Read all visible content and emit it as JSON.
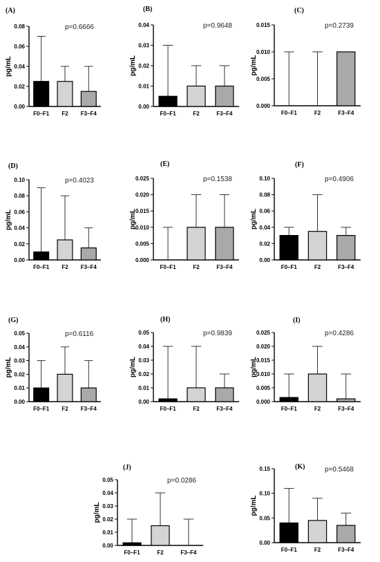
{
  "colors": {
    "F0–F1": "#000000",
    "F2": "#d4d4d4",
    "F3–F4": "#a9a9a9",
    "axis": "#000000",
    "errorbar": "#333333"
  },
  "chart_data": [
    {
      "type": "bar",
      "label": "(A)",
      "pvalue": "p=0.6666",
      "ylabel": "pg/mL",
      "categories": [
        "F0–F1",
        "F2",
        "F3–F4"
      ],
      "values": [
        0.025,
        0.025,
        0.015
      ],
      "error_upper": [
        0.07,
        0.04,
        0.04
      ],
      "ylim": [
        0,
        0.08
      ],
      "yticks": [
        0,
        0.02,
        0.04,
        0.06,
        0.08
      ],
      "ytick_labels": [
        "0.00",
        "0.02",
        "0.04",
        "0.06",
        "0.08"
      ]
    },
    {
      "type": "bar",
      "label": "(B)",
      "pvalue": "p=0.9648",
      "ylabel": "pg/mL",
      "categories": [
        "F0–F1",
        "F2",
        "F3–F4"
      ],
      "values": [
        0.005,
        0.01,
        0.01
      ],
      "error_upper": [
        0.03,
        0.02,
        0.02
      ],
      "ylim": [
        0,
        0.04
      ],
      "yticks": [
        0,
        0.01,
        0.02,
        0.03,
        0.04
      ],
      "ytick_labels": [
        "0.00",
        "0.01",
        "0.02",
        "0.03",
        "0.04"
      ]
    },
    {
      "type": "bar",
      "label": "(C)",
      "pvalue": "p=0.2739",
      "ylabel": "pg/mL",
      "categories": [
        "F0–F1",
        "F2",
        "F3–F4"
      ],
      "values": [
        0,
        0,
        0.01
      ],
      "error_upper": [
        0.01,
        0.01,
        0.01
      ],
      "ylim": [
        0,
        0.015
      ],
      "yticks": [
        0,
        0.005,
        0.01,
        0.015
      ],
      "ytick_labels": [
        "0.000",
        "0.005",
        "0.010",
        "0.015"
      ]
    },
    {
      "type": "bar",
      "label": "(D)",
      "pvalue": "p=0.4023",
      "ylabel": "pg/mL",
      "categories": [
        "F0–F1",
        "F2",
        "F3–F4"
      ],
      "values": [
        0.01,
        0.025,
        0.015
      ],
      "error_upper": [
        0.09,
        0.08,
        0.04
      ],
      "ylim": [
        0,
        0.1
      ],
      "yticks": [
        0,
        0.02,
        0.04,
        0.06,
        0.08,
        0.1
      ],
      "ytick_labels": [
        "0.00",
        "0.02",
        "0.04",
        "0.06",
        "0.08",
        "0.10"
      ]
    },
    {
      "type": "bar",
      "label": "(E)",
      "pvalue": "p=0.1538",
      "ylabel": "pg/mL",
      "categories": [
        "F0–F1",
        "F2",
        "F3–F4"
      ],
      "values": [
        0,
        0.01,
        0.01
      ],
      "error_upper": [
        0.01,
        0.02,
        0.02
      ],
      "ylim": [
        0,
        0.025
      ],
      "yticks": [
        0,
        0.005,
        0.01,
        0.015,
        0.02,
        0.025
      ],
      "ytick_labels": [
        "0.000",
        "0.005",
        "0.010",
        "0.015",
        "0.020",
        "0.025"
      ]
    },
    {
      "type": "bar",
      "label": "(F)",
      "pvalue": "p=0.4906",
      "ylabel": "pg/mL",
      "categories": [
        "F0–F1",
        "F2",
        "F3–F4"
      ],
      "values": [
        0.03,
        0.035,
        0.03
      ],
      "error_upper": [
        0.04,
        0.08,
        0.04
      ],
      "ylim": [
        0,
        0.1
      ],
      "yticks": [
        0,
        0.02,
        0.04,
        0.06,
        0.08,
        0.1
      ],
      "ytick_labels": [
        "0.00",
        "0.02",
        "0.04",
        "0.06",
        "0.08",
        "0.10"
      ]
    },
    {
      "type": "bar",
      "label": "(G)",
      "pvalue": "p=0.6116",
      "ylabel": "pg/mL",
      "categories": [
        "F0–F1",
        "F2",
        "F3–F4"
      ],
      "values": [
        0.01,
        0.02,
        0.01
      ],
      "error_upper": [
        0.03,
        0.04,
        0.03
      ],
      "ylim": [
        0,
        0.05
      ],
      "yticks": [
        0,
        0.01,
        0.02,
        0.03,
        0.04,
        0.05
      ],
      "ytick_labels": [
        "0.00",
        "0.01",
        "0.02",
        "0.03",
        "0.04",
        "0.05"
      ]
    },
    {
      "type": "bar",
      "label": "(H)",
      "pvalue": "p=0.9839",
      "ylabel": "pg/mL",
      "categories": [
        "F0–F1",
        "F2",
        "F3–F4"
      ],
      "values": [
        0.002,
        0.01,
        0.01
      ],
      "error_upper": [
        0.04,
        0.04,
        0.02
      ],
      "ylim": [
        0,
        0.05
      ],
      "yticks": [
        0,
        0.01,
        0.02,
        0.03,
        0.04,
        0.05
      ],
      "ytick_labels": [
        "0.00",
        "0.01",
        "0.02",
        "0.03",
        "0.04",
        "0.05"
      ]
    },
    {
      "type": "bar",
      "label": "(I)",
      "pvalue": "p=0.4286",
      "ylabel": "pg/mL",
      "categories": [
        "F0–F1",
        "F2",
        "F3–F4"
      ],
      "values": [
        0.0015,
        0.01,
        0.001
      ],
      "error_upper": [
        0.01,
        0.02,
        0.01
      ],
      "ylim": [
        0,
        0.025
      ],
      "yticks": [
        0,
        0.005,
        0.01,
        0.015,
        0.02,
        0.025
      ],
      "ytick_labels": [
        "0.000",
        "0.005",
        "0.010",
        "0.015",
        "0.020",
        "0.025"
      ]
    },
    {
      "type": "bar",
      "label": "(J)",
      "pvalue": "p=0.0286",
      "ylabel": "pg/mL",
      "categories": [
        "F0–F1",
        "F2",
        "F3–F4"
      ],
      "values": [
        0.002,
        0.015,
        0
      ],
      "error_upper": [
        0.02,
        0.04,
        0.02
      ],
      "ylim": [
        0,
        0.05
      ],
      "yticks": [
        0,
        0.01,
        0.02,
        0.03,
        0.04,
        0.05
      ],
      "ytick_labels": [
        "0.00",
        "0.01",
        "0.02",
        "0.03",
        "0.04",
        "0.05"
      ]
    },
    {
      "type": "bar",
      "label": "(K)",
      "pvalue": "p=0.5468",
      "ylabel": "pg/mL",
      "categories": [
        "F0–F1",
        "F2",
        "F3–F4"
      ],
      "values": [
        0.04,
        0.045,
        0.035
      ],
      "error_upper": [
        0.11,
        0.09,
        0.06
      ],
      "ylim": [
        0,
        0.15
      ],
      "yticks": [
        0,
        0.05,
        0.1,
        0.15
      ],
      "ytick_labels": [
        "0.00",
        "0.05",
        "0.10",
        "0.15"
      ]
    }
  ]
}
